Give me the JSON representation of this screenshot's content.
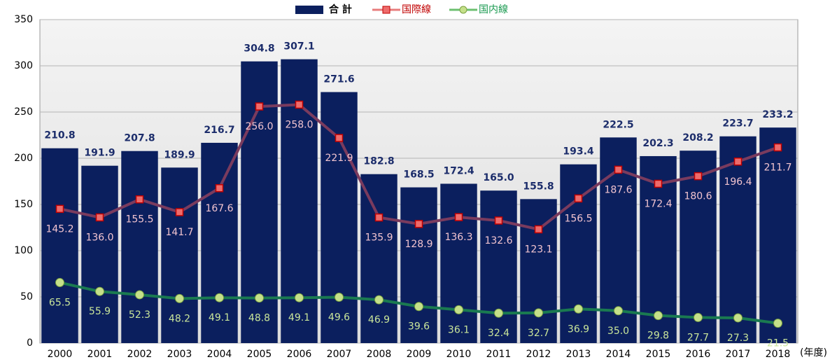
{
  "chart_data": {
    "type": "bar",
    "categories": [
      "2000",
      "2001",
      "2002",
      "2003",
      "2004",
      "2005",
      "2006",
      "2007",
      "2008",
      "2009",
      "2010",
      "2011",
      "2012",
      "2013",
      "2014",
      "2015",
      "2016",
      "2017",
      "2018"
    ],
    "x_unit": "(年度)",
    "ylim": [
      0,
      350
    ],
    "yticks": [
      0,
      50,
      100,
      150,
      200,
      250,
      300,
      350
    ],
    "grid": true,
    "legend": "top",
    "series": [
      {
        "name": "合 計",
        "type": "bar",
        "color": "#0b1f5e",
        "values": [
          210.8,
          191.9,
          207.8,
          189.9,
          216.7,
          304.8,
          307.1,
          271.6,
          182.8,
          168.5,
          172.4,
          165.0,
          155.8,
          193.4,
          222.5,
          202.3,
          208.2,
          223.7,
          233.2
        ],
        "value_labels": [
          "210.8",
          "191.9",
          "207.8",
          "189.9",
          "216.7",
          "304.8",
          "307.1",
          "271.6",
          "182.8",
          "168.5",
          "172.4",
          "165.0",
          "155.8",
          "193.4",
          "222.5",
          "202.3",
          "208.2",
          "223.7",
          "233.2"
        ]
      },
      {
        "name": "国際線",
        "type": "line",
        "color": "#7a3b5e",
        "marker_color": "#ee6b6b",
        "values": [
          145.2,
          136.0,
          155.5,
          141.7,
          167.6,
          256.0,
          258.0,
          221.9,
          135.9,
          128.9,
          136.3,
          132.6,
          123.1,
          156.5,
          187.6,
          172.4,
          180.6,
          196.4,
          211.7
        ],
        "value_labels": [
          "145.2",
          "136.0",
          "155.5",
          "141.7",
          "167.6",
          "256.0",
          "258.0",
          "221.9",
          "135.9",
          "128.9",
          "136.3",
          "132.6",
          "123.1",
          "156.5",
          "187.6",
          "172.4",
          "180.6",
          "196.4",
          "211.7"
        ]
      },
      {
        "name": "国内線",
        "type": "line",
        "color": "#1a7a50",
        "marker_color": "#c5e08a",
        "values": [
          65.5,
          55.9,
          52.3,
          48.2,
          49.1,
          48.8,
          49.1,
          49.6,
          46.9,
          39.6,
          36.1,
          32.4,
          32.7,
          36.9,
          35.0,
          29.8,
          27.7,
          27.3,
          21.5
        ],
        "value_labels": [
          "65.5",
          "55.9",
          "52.3",
          "48.2",
          "49.1",
          "48.8",
          "49.1",
          "49.6",
          "46.9",
          "39.6",
          "36.1",
          "32.4",
          "32.7",
          "36.9",
          "35.0",
          "29.8",
          "27.7",
          "27.3",
          "21.5"
        ]
      }
    ]
  }
}
